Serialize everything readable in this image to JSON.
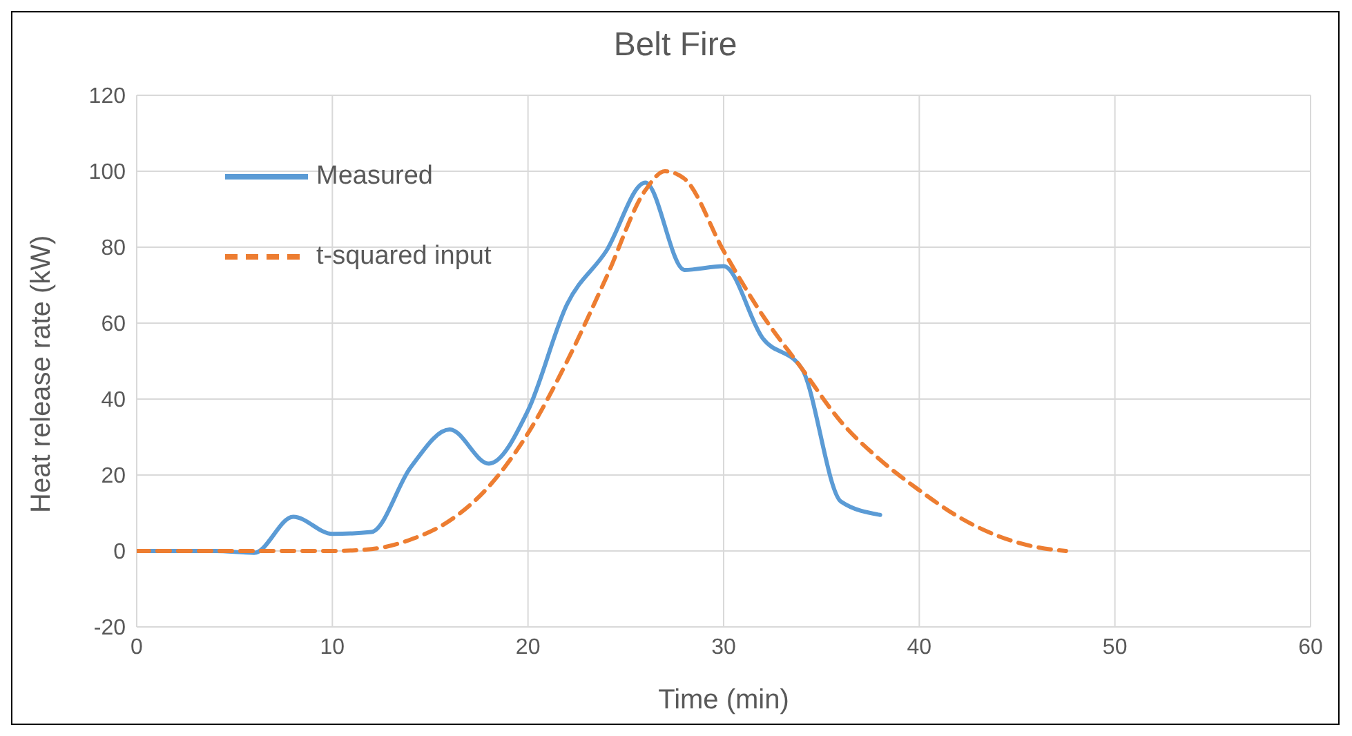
{
  "chart_data": {
    "type": "line",
    "title": "Belt Fire",
    "xlabel": "Time (min)",
    "ylabel": "Heat release rate (kW)",
    "xlim": [
      0,
      60
    ],
    "xticks": [
      0,
      10,
      20,
      30,
      40,
      50,
      60
    ],
    "ylim": [
      -20,
      120
    ],
    "yticks": [
      -20,
      0,
      20,
      40,
      60,
      80,
      100,
      120
    ],
    "grid": true,
    "legend": "top left",
    "marker": "none",
    "series": [
      {
        "name": "Measured",
        "color": "#5b9bd5",
        "line_style": "solid",
        "x": [
          0,
          2,
          4,
          6,
          8,
          10,
          12,
          14,
          16,
          18,
          20,
          22,
          24,
          26,
          28,
          30,
          32,
          34,
          36,
          38
        ],
        "values": [
          0,
          0,
          0,
          -0.5,
          9,
          4.5,
          5,
          22,
          32,
          23,
          37,
          65,
          79,
          97,
          74,
          75,
          56,
          48,
          13,
          9.5
        ]
      },
      {
        "name": "t-squared input",
        "color": "#ed7d31",
        "line_style": "dashed",
        "x": [
          0,
          2,
          4,
          6,
          8,
          10,
          12,
          14,
          16,
          18,
          20,
          22,
          24,
          26,
          27,
          28,
          30,
          32,
          34,
          36,
          38,
          40,
          42,
          44,
          46,
          47.5
        ],
        "values": [
          0,
          0,
          0,
          0,
          0,
          0,
          0.5,
          3,
          8,
          17,
          31,
          50,
          72,
          95,
          100,
          98,
          79,
          62,
          48,
          34,
          24,
          16,
          9,
          4,
          1,
          0
        ]
      }
    ]
  }
}
